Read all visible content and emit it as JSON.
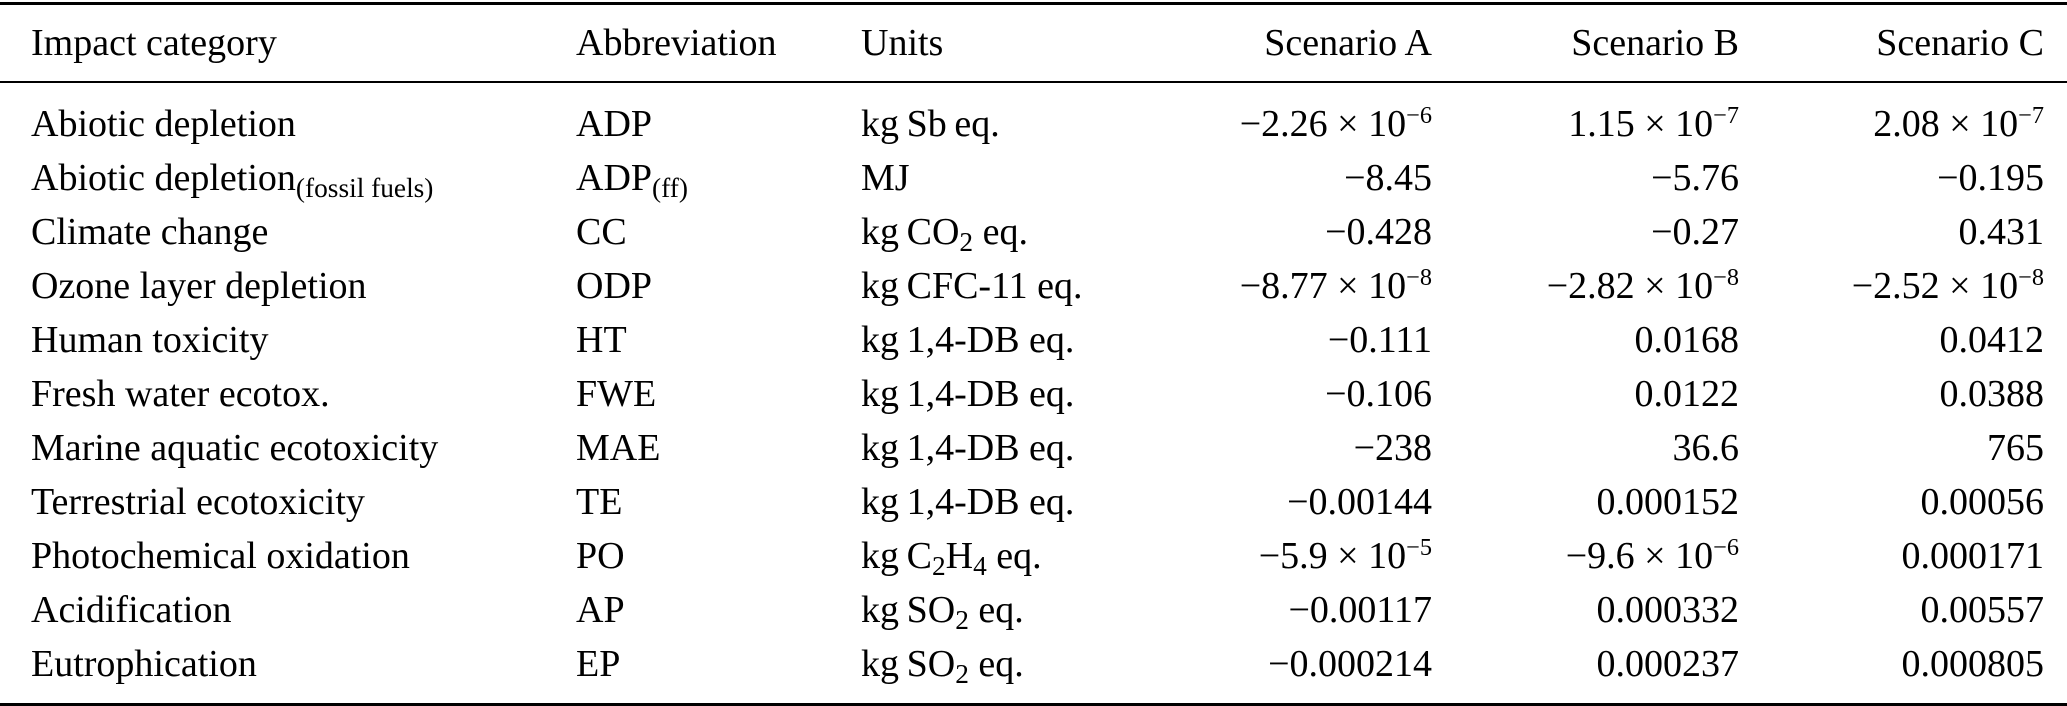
{
  "colors": {
    "text": "#000000",
    "background": "#ffffff",
    "rule": "#000000"
  },
  "table": {
    "headers": [
      "Impact category",
      "Abbreviation",
      "Units",
      "Scenario A",
      "Scenario B",
      "Scenario C"
    ],
    "rows": [
      {
        "cells": [
          "Abiotic depletion",
          "ADP",
          "kg Sb eq.",
          "−2.26 × 10^{−6}",
          "1.15 × 10^{−7}",
          "2.08 × 10^{−7}"
        ]
      },
      {
        "cells": [
          "Abiotic depletion_{(fossil fuels)}",
          "ADP_{(ff)}",
          "MJ",
          "−8.45",
          "−5.76",
          "−0.195"
        ]
      },
      {
        "cells": [
          "Climate change",
          "CC",
          "kg CO_{2} eq.",
          "−0.428",
          "−0.27",
          "0.431"
        ]
      },
      {
        "cells": [
          "Ozone layer depletion",
          "ODP",
          "kg CFC-11 eq.",
          "−8.77 × 10^{−8}",
          "−2.82 × 10^{−8}",
          "−2.52 × 10^{−8}"
        ]
      },
      {
        "cells": [
          "Human toxicity",
          "HT",
          "kg 1,4-DB eq.",
          "−0.111",
          "0.0168",
          "0.0412"
        ]
      },
      {
        "cells": [
          "Fresh water ecotox.",
          "FWE",
          "kg 1,4-DB eq.",
          "−0.106",
          "0.0122",
          "0.0388"
        ]
      },
      {
        "cells": [
          "Marine aquatic ecotoxicity",
          "MAE",
          "kg 1,4-DB eq.",
          "−238",
          "36.6",
          "765"
        ]
      },
      {
        "cells": [
          "Terrestrial ecotoxicity",
          "TE",
          "kg 1,4-DB eq.",
          "−0.00144",
          "0.000152",
          "0.00056"
        ]
      },
      {
        "cells": [
          "Photochemical oxidation",
          "PO",
          "kg C_{2}H_{4} eq.",
          "−5.9 × 10^{−5}",
          "−9.6 × 10^{−6}",
          "0.000171"
        ]
      },
      {
        "cells": [
          "Acidification",
          "AP",
          "kg SO_{2} eq.",
          "−0.00117",
          "0.000332",
          "0.00557"
        ]
      },
      {
        "cells": [
          "Eutrophication",
          "EP",
          "kg SO_{2} eq.",
          "−0.000214",
          "0.000237",
          "0.000805"
        ]
      }
    ]
  }
}
